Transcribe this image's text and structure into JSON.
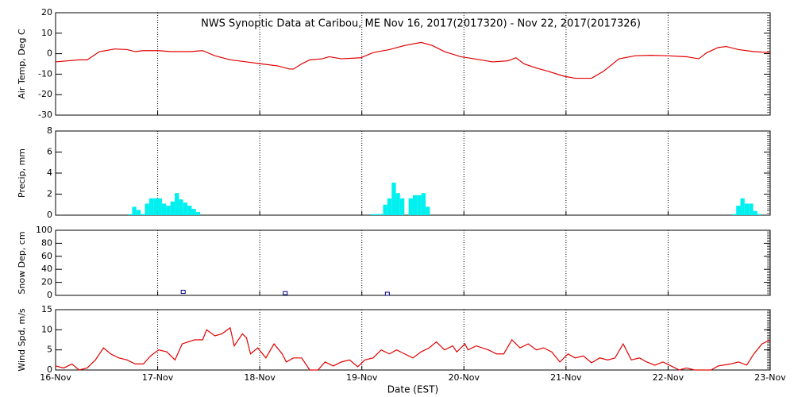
{
  "chart_data": [
    {
      "type": "line",
      "title": "NWS Synoptic Data at Caribou, ME   Nov 16, 2017(2017320) - Nov 22, 2017(2017326)",
      "ylabel": "Air Temp, Deg C",
      "color": "#e00000",
      "grid": true,
      "xlim": [
        0,
        7
      ],
      "xticks": [
        0,
        1,
        2,
        3,
        4,
        5,
        6,
        7
      ],
      "ylim": [
        -30,
        20
      ],
      "yticks": [
        -30,
        -20,
        -10,
        0,
        10,
        20
      ],
      "x": [
        0,
        0.23,
        0.31,
        0.43,
        0.58,
        0.7,
        0.78,
        0.86,
        1.01,
        1.13,
        1.32,
        1.44,
        1.56,
        1.71,
        1.87,
        2.02,
        2.18,
        2.29,
        2.33,
        2.41,
        2.49,
        2.61,
        2.68,
        2.8,
        2.99,
        3.11,
        3.27,
        3.42,
        3.58,
        3.69,
        3.81,
        3.97,
        4.16,
        4.28,
        4.43,
        4.51,
        4.59,
        4.71,
        4.82,
        4.98,
        5.09,
        5.25,
        5.37,
        5.52,
        5.68,
        5.83,
        5.99,
        6.18,
        6.3,
        6.38,
        6.49,
        6.57,
        6.69,
        6.84,
        7
      ],
      "values": [
        -4,
        -3,
        -3,
        1,
        2.3,
        2,
        1,
        1.5,
        1.5,
        1,
        1,
        1.5,
        -1,
        -3,
        -4,
        -5,
        -6,
        -7.5,
        -7.5,
        -5,
        -3,
        -2.5,
        -1.5,
        -2.5,
        -2,
        0.5,
        2,
        4,
        5.5,
        4,
        1,
        -1.5,
        -3,
        -4,
        -3.5,
        -2,
        -5,
        -7,
        -8.5,
        -11,
        -12,
        -12,
        -8.5,
        -2.5,
        -1,
        -0.8,
        -1,
        -1.5,
        -2.5,
        0.5,
        3,
        3.5,
        2,
        1,
        0.5
      ]
    },
    {
      "type": "bar",
      "ylabel": "Precip, mm",
      "color": "#00f0f0",
      "grid": true,
      "xlim": [
        0,
        7
      ],
      "xticks": [
        0,
        1,
        2,
        3,
        4,
        5,
        6,
        7
      ],
      "ylim": [
        0,
        8
      ],
      "yticks": [
        0,
        2,
        4,
        6,
        8
      ],
      "x": [
        0.708,
        0.75,
        0.792,
        0.833,
        0.875,
        0.917,
        0.958,
        1,
        1.042,
        1.083,
        1.125,
        1.167,
        1.208,
        1.25,
        1.292,
        1.333,
        1.375,
        3.083,
        3.125,
        3.167,
        3.208,
        3.25,
        3.292,
        3.333,
        3.375,
        3.458,
        3.5,
        3.542,
        3.583,
        3.625,
        6.625,
        6.667,
        6.708,
        6.75,
        6.792,
        6.833,
        6.875
      ],
      "values": [
        0.1,
        0.8,
        0.5,
        0.1,
        1.1,
        1.6,
        1.6,
        1.6,
        1.1,
        0.9,
        1.3,
        2.1,
        1.5,
        1.2,
        0.9,
        0.6,
        0.3,
        0.1,
        0.1,
        0.1,
        1,
        1.6,
        3.1,
        2.1,
        1.6,
        1.6,
        1.9,
        1.9,
        2.1,
        0.8,
        0.1,
        0.9,
        1.6,
        1.1,
        1.1,
        0.4,
        0.1
      ]
    },
    {
      "type": "scatter",
      "ylabel": "Snow Dep, cm",
      "color": "#000080",
      "grid": true,
      "xlim": [
        0,
        7
      ],
      "xticks": [
        0,
        1,
        2,
        3,
        4,
        5,
        6,
        7
      ],
      "ylim": [
        0,
        100
      ],
      "yticks": [
        0,
        20,
        40,
        60,
        80,
        100
      ],
      "x": [
        1.25,
        2.25,
        3.25
      ],
      "values": [
        3,
        1,
        0
      ]
    },
    {
      "type": "line",
      "ylabel": "Wind Spd, m/s",
      "xlabel": "Date (EST)",
      "color": "#e00000",
      "grid": true,
      "xlim": [
        0,
        7
      ],
      "xticks": [
        {
          "value": 0,
          "label": "16-Nov"
        },
        {
          "value": 1,
          "label": "17-Nov"
        },
        {
          "value": 2,
          "label": "18-Nov"
        },
        {
          "value": 3,
          "label": "19-Nov"
        },
        {
          "value": 4,
          "label": "20-Nov"
        },
        {
          "value": 5,
          "label": "21-Nov"
        },
        {
          "value": 6,
          "label": "22-Nov"
        },
        {
          "value": 7,
          "label": "23-Nov"
        }
      ],
      "ylim": [
        0,
        15
      ],
      "yticks": [
        0,
        5,
        10,
        15
      ],
      "x": [
        0,
        0.08,
        0.16,
        0.23,
        0.31,
        0.39,
        0.47,
        0.54,
        0.62,
        0.7,
        0.78,
        0.86,
        0.93,
        1.01,
        1.09,
        1.17,
        1.24,
        1.36,
        1.44,
        1.48,
        1.56,
        1.63,
        1.71,
        1.75,
        1.83,
        1.87,
        1.91,
        1.98,
        2.06,
        2.14,
        2.22,
        2.26,
        2.33,
        2.41,
        2.49,
        2.57,
        2.64,
        2.72,
        2.8,
        2.88,
        2.96,
        3.03,
        3.11,
        3.19,
        3.27,
        3.34,
        3.42,
        3.5,
        3.58,
        3.66,
        3.73,
        3.81,
        3.89,
        3.93,
        4.01,
        4.04,
        4.12,
        4.24,
        4.32,
        4.39,
        4.47,
        4.55,
        4.63,
        4.71,
        4.78,
        4.86,
        4.94,
        5.02,
        5.09,
        5.17,
        5.25,
        5.33,
        5.41,
        5.48,
        5.56,
        5.64,
        5.72,
        5.79,
        5.87,
        5.95,
        6.03,
        6.11,
        6.18,
        6.26,
        6.34,
        6.42,
        6.49,
        6.61,
        6.69,
        6.77,
        6.84,
        6.92,
        7
      ],
      "values": [
        1,
        0.5,
        1.5,
        0,
        0.5,
        2.5,
        5.5,
        4,
        3,
        2.5,
        1.5,
        1.5,
        3.5,
        5,
        4.5,
        2.5,
        6.5,
        7.5,
        7.5,
        10,
        8.5,
        9,
        10.5,
        6,
        9,
        8,
        4,
        5.5,
        3,
        6.5,
        4,
        2,
        3,
        3,
        0,
        0,
        2,
        1,
        2,
        2.5,
        0.8,
        2.5,
        3,
        5,
        4,
        5,
        4,
        3,
        4.5,
        5.5,
        7,
        5,
        6,
        4.5,
        6.5,
        5,
        6,
        5,
        4,
        4,
        7.5,
        5.5,
        6.5,
        5,
        5.5,
        4.5,
        2,
        4,
        3,
        3.5,
        1.8,
        3,
        2.5,
        3,
        6.5,
        2.5,
        3,
        2,
        1.2,
        2,
        1,
        0,
        0.5,
        0,
        0,
        0,
        1,
        1.5,
        2,
        1.2,
        4,
        6.5,
        7.5
      ]
    }
  ]
}
